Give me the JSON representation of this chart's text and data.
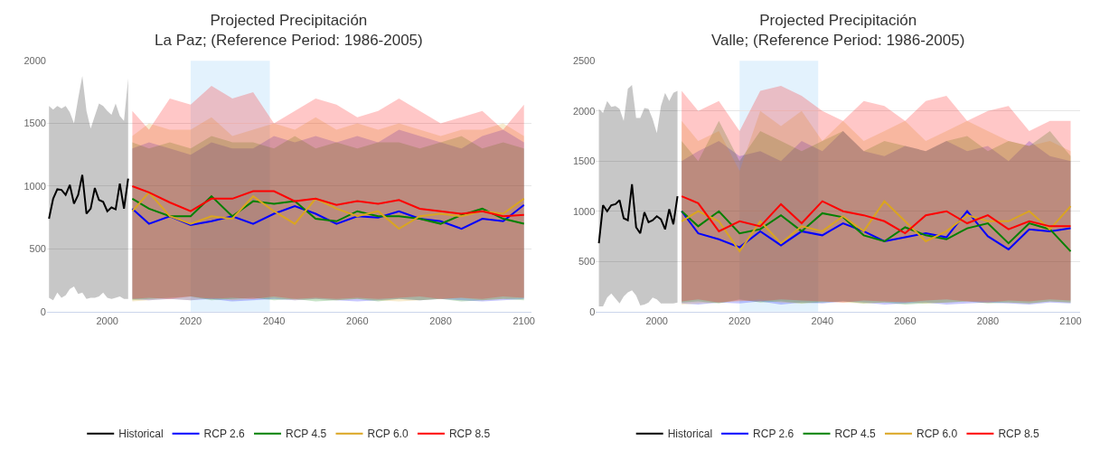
{
  "chart_data": [
    {
      "type": "line",
      "title": "Projected Precipitación\nLa Paz; (Reference Period: 1986-2005)",
      "xlim": [
        1985.5,
        2101.7
      ],
      "xticks": [
        2000,
        2020,
        2040,
        2060,
        2080,
        2100
      ],
      "ylim": [
        0,
        2000
      ],
      "yticks": [
        0,
        500,
        1000,
        1500,
        2000
      ],
      "grid": "y",
      "legend": "bottom",
      "bands": [
        {
          "axis": "x",
          "from": 2020,
          "to": 2039,
          "color": "#e3f2fd"
        }
      ],
      "series": [
        {
          "name": "Historical",
          "color": "#000000",
          "x": [
            1986,
            1987,
            1988,
            1989,
            1990,
            1991,
            1992,
            1993,
            1994,
            1995,
            1996,
            1997,
            1998,
            1999,
            2000,
            2001,
            2002,
            2003,
            2004,
            2005
          ],
          "values": [
            740,
            900,
            975,
            970,
            930,
            1010,
            860,
            930,
            1090,
            780,
            820,
            985,
            890,
            875,
            800,
            830,
            815,
            1020,
            820,
            1060
          ],
          "lower": [
            110,
            90,
            150,
            110,
            130,
            180,
            200,
            140,
            150,
            100,
            110,
            110,
            120,
            150,
            110,
            100,
            110,
            120,
            100,
            100
          ],
          "upper": [
            1640,
            1610,
            1640,
            1620,
            1640,
            1590,
            1500,
            1700,
            1880,
            1600,
            1460,
            1560,
            1660,
            1640,
            1600,
            1570,
            1660,
            1560,
            1520,
            1860
          ]
        },
        {
          "name": "RCP 2.6",
          "color": "#0000ff",
          "x": [
            2006,
            2010,
            2015,
            2020,
            2025,
            2030,
            2035,
            2040,
            2045,
            2050,
            2055,
            2060,
            2065,
            2070,
            2075,
            2080,
            2085,
            2090,
            2095,
            2100
          ],
          "values": [
            820,
            700,
            760,
            690,
            720,
            760,
            700,
            780,
            840,
            780,
            700,
            760,
            750,
            800,
            740,
            720,
            660,
            740,
            720,
            850
          ],
          "lower": [
            100,
            90,
            100,
            90,
            100,
            80,
            90,
            100,
            90,
            100,
            90,
            80,
            90,
            100,
            90,
            100,
            90,
            80,
            90,
            100
          ],
          "upper": [
            1300,
            1350,
            1300,
            1250,
            1350,
            1300,
            1300,
            1400,
            1350,
            1400,
            1350,
            1400,
            1350,
            1450,
            1400,
            1350,
            1300,
            1400,
            1450,
            1350
          ]
        },
        {
          "name": "RCP 4.5",
          "color": "#008000",
          "x": [
            2006,
            2010,
            2015,
            2020,
            2025,
            2030,
            2035,
            2040,
            2045,
            2050,
            2055,
            2060,
            2065,
            2070,
            2075,
            2080,
            2085,
            2090,
            2095,
            2100
          ],
          "values": [
            900,
            820,
            760,
            760,
            920,
            760,
            880,
            860,
            880,
            740,
            720,
            800,
            760,
            760,
            740,
            700,
            770,
            820,
            740,
            700
          ],
          "lower": [
            90,
            100,
            110,
            120,
            90,
            100,
            110,
            90,
            100,
            80,
            90,
            100,
            80,
            100,
            90,
            100,
            80,
            90,
            100,
            90
          ],
          "upper": [
            1350,
            1300,
            1350,
            1300,
            1400,
            1350,
            1350,
            1300,
            1400,
            1300,
            1350,
            1300,
            1350,
            1350,
            1300,
            1350,
            1400,
            1300,
            1350,
            1300
          ]
        },
        {
          "name": "RCP 6.0",
          "color": "#daa520",
          "x": [
            2006,
            2010,
            2015,
            2020,
            2025,
            2030,
            2035,
            2040,
            2045,
            2050,
            2055,
            2060,
            2065,
            2070,
            2075,
            2080,
            2085,
            2090,
            2095,
            2100
          ],
          "values": [
            800,
            950,
            760,
            700,
            760,
            740,
            920,
            800,
            700,
            900,
            820,
            760,
            800,
            660,
            760,
            780,
            760,
            800,
            780,
            900
          ],
          "lower": [
            80,
            90,
            100,
            90,
            110,
            90,
            100,
            110,
            90,
            100,
            90,
            100,
            90,
            80,
            90,
            100,
            110,
            90,
            100,
            110
          ],
          "upper": [
            1400,
            1500,
            1450,
            1450,
            1550,
            1400,
            1450,
            1500,
            1450,
            1550,
            1450,
            1500,
            1450,
            1500,
            1450,
            1400,
            1450,
            1450,
            1500,
            1400
          ]
        },
        {
          "name": "RCP 8.5",
          "color": "#ff0000",
          "x": [
            2006,
            2010,
            2015,
            2020,
            2025,
            2030,
            2035,
            2040,
            2045,
            2050,
            2055,
            2060,
            2065,
            2070,
            2075,
            2080,
            2085,
            2090,
            2095,
            2100
          ],
          "values": [
            1000,
            950,
            870,
            800,
            900,
            900,
            960,
            960,
            880,
            900,
            850,
            880,
            860,
            890,
            820,
            800,
            780,
            800,
            760,
            770
          ],
          "lower": [
            100,
            110,
            100,
            120,
            100,
            110,
            100,
            120,
            100,
            110,
            100,
            110,
            100,
            110,
            120,
            100,
            110,
            100,
            120,
            110
          ],
          "upper": [
            1600,
            1450,
            1700,
            1650,
            1800,
            1700,
            1750,
            1500,
            1600,
            1700,
            1650,
            1550,
            1600,
            1700,
            1600,
            1500,
            1550,
            1600,
            1450,
            1650
          ]
        }
      ]
    },
    {
      "type": "line",
      "title": "Projected Precipitación\nValle; (Reference Period: 1986-2005)",
      "xlim": [
        1985.3,
        2102.3
      ],
      "xticks": [
        2000,
        2020,
        2040,
        2060,
        2080,
        2100
      ],
      "ylim": [
        0,
        2500
      ],
      "yticks": [
        0,
        500,
        1000,
        1500,
        2000,
        2500
      ],
      "grid": "y",
      "legend": "bottom",
      "bands": [
        {
          "axis": "x",
          "from": 2020,
          "to": 2039,
          "color": "#e3f2fd"
        }
      ],
      "series": [
        {
          "name": "Historical",
          "color": "#000000",
          "x": [
            1986,
            1987,
            1988,
            1989,
            1990,
            1991,
            1992,
            1993,
            1994,
            1995,
            1996,
            1997,
            1998,
            1999,
            2000,
            2001,
            2002,
            2003,
            2004,
            2005
          ],
          "values": [
            680,
            1060,
            1000,
            1060,
            1070,
            1110,
            930,
            910,
            1270,
            840,
            780,
            990,
            890,
            910,
            950,
            920,
            820,
            1020,
            870,
            1150
          ],
          "lower": [
            50,
            50,
            140,
            180,
            130,
            80,
            150,
            190,
            210,
            160,
            60,
            70,
            90,
            140,
            120,
            80,
            80,
            80,
            80,
            90
          ],
          "upper": [
            2020,
            1980,
            2100,
            2040,
            2050,
            2020,
            1900,
            2220,
            2260,
            1930,
            1930,
            2030,
            2020,
            1920,
            1780,
            2050,
            2180,
            2100,
            2180,
            2200
          ]
        },
        {
          "name": "RCP 2.6",
          "color": "#0000ff",
          "x": [
            2006,
            2010,
            2015,
            2020,
            2025,
            2030,
            2035,
            2040,
            2045,
            2050,
            2055,
            2060,
            2065,
            2070,
            2075,
            2080,
            2085,
            2090,
            2095,
            2100
          ],
          "values": [
            1000,
            780,
            720,
            640,
            800,
            660,
            800,
            760,
            880,
            800,
            700,
            740,
            780,
            740,
            1000,
            750,
            620,
            820,
            800,
            830
          ],
          "lower": [
            80,
            70,
            90,
            80,
            100,
            70,
            90,
            80,
            100,
            90,
            70,
            80,
            90,
            70,
            80,
            90,
            80,
            70,
            90,
            80
          ],
          "upper": [
            1500,
            1600,
            1700,
            1550,
            1600,
            1500,
            1700,
            1600,
            1800,
            1600,
            1550,
            1650,
            1600,
            1700,
            1600,
            1650,
            1500,
            1700,
            1550,
            1500
          ]
        },
        {
          "name": "RCP 4.5",
          "color": "#008000",
          "x": [
            2006,
            2010,
            2015,
            2020,
            2025,
            2030,
            2035,
            2040,
            2045,
            2050,
            2055,
            2060,
            2065,
            2070,
            2075,
            2080,
            2085,
            2090,
            2095,
            2100
          ],
          "values": [
            1000,
            850,
            1000,
            780,
            820,
            960,
            800,
            980,
            940,
            760,
            700,
            840,
            760,
            720,
            830,
            880,
            680,
            880,
            820,
            600
          ],
          "lower": [
            90,
            100,
            80,
            120,
            90,
            100,
            80,
            90,
            100,
            80,
            90,
            70,
            80,
            90,
            100,
            80,
            90,
            80,
            100,
            90
          ],
          "upper": [
            1700,
            1500,
            1900,
            1500,
            1800,
            1700,
            1600,
            1700,
            1800,
            1600,
            1700,
            1650,
            1600,
            1700,
            1750,
            1600,
            1700,
            1650,
            1800,
            1550
          ]
        },
        {
          "name": "RCP 6.0",
          "color": "#daa520",
          "x": [
            2006,
            2010,
            2015,
            2020,
            2025,
            2030,
            2035,
            2040,
            2045,
            2050,
            2055,
            2060,
            2065,
            2070,
            2075,
            2080,
            2085,
            2090,
            2095,
            2100
          ],
          "values": [
            900,
            1000,
            900,
            600,
            900,
            680,
            850,
            800,
            950,
            800,
            1100,
            900,
            700,
            800,
            960,
            900,
            900,
            1000,
            820,
            1050
          ],
          "lower": [
            70,
            80,
            90,
            100,
            120,
            90,
            80,
            100,
            90,
            80,
            90,
            100,
            80,
            90,
            100,
            110,
            90,
            80,
            100,
            90
          ],
          "upper": [
            1900,
            1700,
            1800,
            1400,
            2000,
            1850,
            2000,
            1700,
            1900,
            1700,
            1800,
            1900,
            1700,
            1800,
            1900,
            1800,
            1700,
            1650,
            1700,
            1600
          ]
        },
        {
          "name": "RCP 8.5",
          "color": "#ff0000",
          "x": [
            2006,
            2010,
            2015,
            2020,
            2025,
            2030,
            2035,
            2040,
            2045,
            2050,
            2055,
            2060,
            2065,
            2070,
            2075,
            2080,
            2085,
            2090,
            2095,
            2100
          ],
          "values": [
            1150,
            1080,
            800,
            900,
            850,
            1070,
            880,
            1100,
            1000,
            960,
            900,
            780,
            960,
            1000,
            880,
            960,
            820,
            900,
            850,
            850
          ],
          "lower": [
            100,
            120,
            90,
            110,
            100,
            120,
            110,
            100,
            90,
            110,
            100,
            90,
            110,
            120,
            100,
            90,
            110,
            100,
            120,
            110
          ],
          "upper": [
            2200,
            2000,
            2100,
            1800,
            2200,
            2250,
            2150,
            2000,
            1900,
            2100,
            2050,
            1900,
            2100,
            2150,
            1900,
            2000,
            2050,
            1800,
            1900,
            1900
          ]
        }
      ]
    }
  ]
}
